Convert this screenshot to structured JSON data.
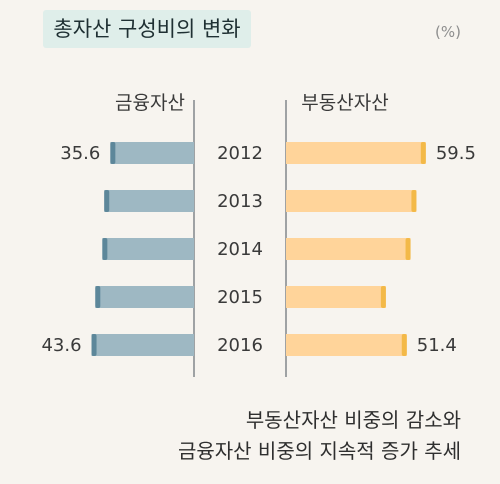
{
  "title": "총자산 구성비의 변화",
  "unit": "(%)",
  "caption": {
    "line1": "부동산자산 비중의 감소와",
    "line2": "금융자산 비중의 지속적 증가 추세"
  },
  "chart_data": {
    "type": "bar",
    "orientation": "horizontal-butterfly",
    "categories": [
      "2012",
      "2013",
      "2014",
      "2015",
      "2016"
    ],
    "series": [
      {
        "name": "금융자산",
        "values": [
          35.6,
          38.2,
          39.0,
          42.0,
          43.6
        ],
        "color": "#9eb8c3",
        "end_color": "#5d879a",
        "value_labels": [
          "35.6",
          "",
          "",
          "",
          "43.6"
        ]
      },
      {
        "name": "부동산자산",
        "values": [
          59.5,
          55.5,
          53.0,
          42.5,
          51.4
        ],
        "color": "#ffd49a",
        "end_color": "#f3b948",
        "value_labels": [
          "59.5",
          "",
          "",
          "",
          "51.4"
        ]
      }
    ],
    "title": "총자산 구성비의 변화",
    "xlabel": "",
    "ylabel": "",
    "grid": false,
    "legend": "series headers above columns"
  }
}
